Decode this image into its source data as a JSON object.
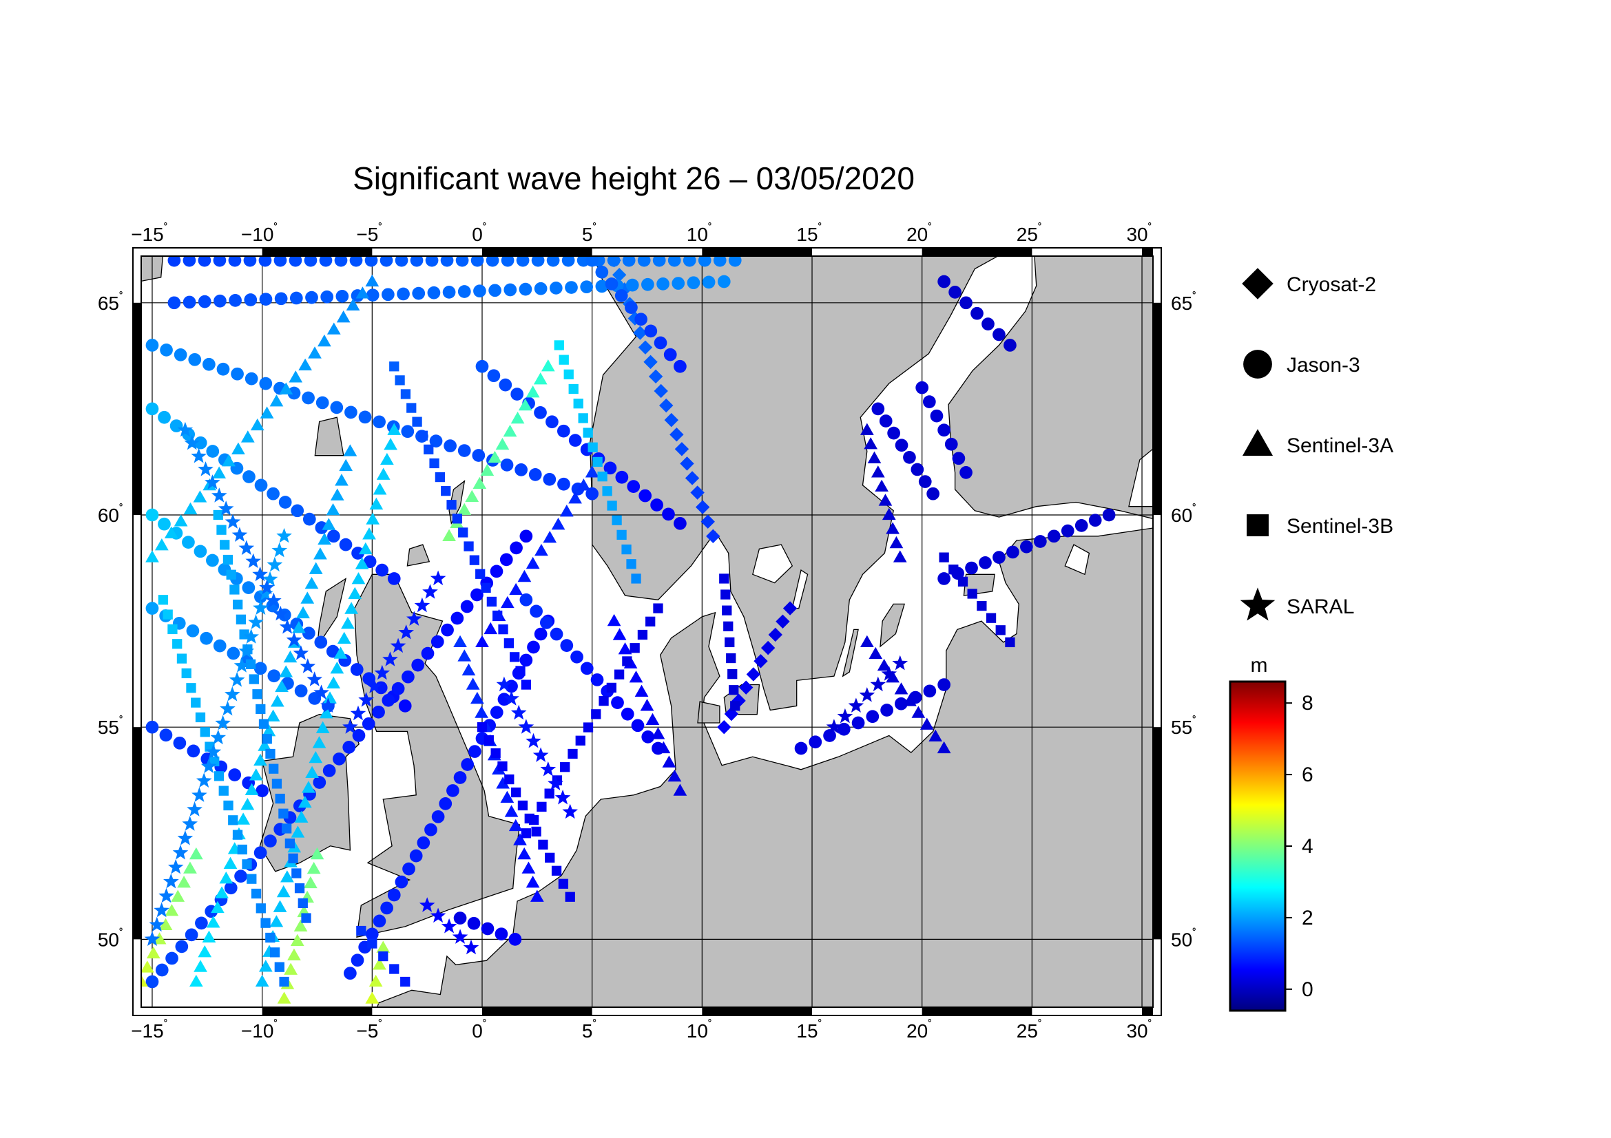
{
  "title": "Significant wave height 26 – 03/05/2020",
  "map": {
    "lon_range": [
      -15.5,
      30.5
    ],
    "lat_range": [
      48.4,
      66.1
    ],
    "lon_ticks": [
      {
        "value": -15,
        "label": "−15"
      },
      {
        "value": -10,
        "label": "−10"
      },
      {
        "value": -5,
        "label": "−5"
      },
      {
        "value": 0,
        "label": "0"
      },
      {
        "value": 5,
        "label": "5"
      },
      {
        "value": 10,
        "label": "10"
      },
      {
        "value": 15,
        "label": "15"
      },
      {
        "value": 20,
        "label": "20"
      },
      {
        "value": 25,
        "label": "25"
      },
      {
        "value": 30,
        "label": "30"
      }
    ],
    "lat_ticks": [
      {
        "value": 50,
        "label": "50"
      },
      {
        "value": 55,
        "label": "55"
      },
      {
        "value": 60,
        "label": "60"
      },
      {
        "value": 65,
        "label": "65"
      }
    ],
    "degree_symbol": "˚",
    "land_color": "#bebebe",
    "sea_color": "#ffffff"
  },
  "legend": {
    "items": [
      {
        "label": "Cryosat-2",
        "marker": "diamond"
      },
      {
        "label": "Jason-3",
        "marker": "circle"
      },
      {
        "label": "Sentinel-3A",
        "marker": "triangle"
      },
      {
        "label": "Sentinel-3B",
        "marker": "square"
      },
      {
        "label": "SARAL",
        "marker": "star"
      }
    ]
  },
  "colorbar": {
    "unit": "m",
    "range": [
      -0.6,
      8.6
    ],
    "ticks": [
      {
        "value": 0,
        "label": "0"
      },
      {
        "value": 2,
        "label": "2"
      },
      {
        "value": 4,
        "label": "4"
      },
      {
        "value": 6,
        "label": "6"
      },
      {
        "value": 8,
        "label": "8"
      }
    ],
    "stops": [
      "#00007f",
      "#0000ff",
      "#007fff",
      "#00ffff",
      "#7fff7f",
      "#ffff00",
      "#ff7f00",
      "#ff0000",
      "#7f0000"
    ]
  },
  "chart_data": {
    "type": "scatter",
    "title": "Significant wave height 26 – 03/05/2020",
    "xlabel": "",
    "ylabel": "",
    "xlim": [
      -15.5,
      30.5
    ],
    "ylim": [
      48.4,
      66.1
    ],
    "value_unit": "m",
    "value_range": [
      -0.6,
      8.6
    ],
    "series": [
      {
        "name": "Cryosat-2",
        "marker": "diamond",
        "tracks": [
          {
            "lon": [
              6.0,
              10.5
            ],
            "lat": [
              66.0,
              59.5
            ],
            "values": [
              1.6,
              1.0
            ]
          },
          {
            "lon": [
              14.0,
              11.0
            ],
            "lat": [
              57.8,
              55.0
            ],
            "values": [
              0.3,
              0.5
            ]
          }
        ]
      },
      {
        "name": "Jason-3",
        "marker": "circle",
        "tracks": [
          {
            "lon": [
              -14.0,
              11.5
            ],
            "lat": [
              66.0,
              66.0
            ],
            "values": [
              1.1,
              1.7
            ]
          },
          {
            "lon": [
              -14.0,
              11.0
            ],
            "lat": [
              65.0,
              65.5
            ],
            "values": [
              1.2,
              1.8
            ]
          },
          {
            "lon": [
              -15.0,
              5.0
            ],
            "lat": [
              64.0,
              60.5
            ],
            "values": [
              1.8,
              1.0
            ]
          },
          {
            "lon": [
              -15.0,
              -4.0
            ],
            "lat": [
              62.5,
              58.5
            ],
            "values": [
              2.2,
              0.8
            ]
          },
          {
            "lon": [
              -15.0,
              -3.5
            ],
            "lat": [
              60.0,
              55.5
            ],
            "values": [
              2.4,
              0.6
            ]
          },
          {
            "lon": [
              -15.0,
              -10.0
            ],
            "lat": [
              55.0,
              53.5
            ],
            "values": [
              1.1,
              0.8
            ]
          },
          {
            "lon": [
              -15.0,
              -7.0
            ],
            "lat": [
              57.8,
              55.5
            ],
            "values": [
              2.0,
              1.2
            ]
          },
          {
            "lon": [
              0.0,
              9.0
            ],
            "lat": [
              63.5,
              59.8
            ],
            "values": [
              1.3,
              0.4
            ]
          },
          {
            "lon": [
              5.0,
              9.0
            ],
            "lat": [
              66.0,
              63.5
            ],
            "values": [
              1.5,
              0.8
            ]
          },
          {
            "lon": [
              -15.0,
              2.0
            ],
            "lat": [
              49.0,
              59.5
            ],
            "values": [
              1.2,
              0.5
            ]
          },
          {
            "lon": [
              -6.0,
              3.0
            ],
            "lat": [
              49.2,
              57.5
            ],
            "values": [
              0.9,
              0.6
            ]
          },
          {
            "lon": [
              2.0,
              8.0
            ],
            "lat": [
              58.0,
              54.5
            ],
            "values": [
              1.0,
              0.4
            ]
          },
          {
            "lon": [
              18.0,
              20.5
            ],
            "lat": [
              62.5,
              60.5
            ],
            "values": [
              0.2,
              0.1
            ]
          },
          {
            "lon": [
              20.0,
              22.0
            ],
            "lat": [
              63.0,
              61.0
            ],
            "values": [
              0.2,
              0.2
            ]
          },
          {
            "lon": [
              21.0,
              24.0
            ],
            "lat": [
              65.5,
              64.0
            ],
            "values": [
              0.1,
              0.1
            ]
          },
          {
            "lon": [
              14.5,
              21.0
            ],
            "lat": [
              54.5,
              56.0
            ],
            "values": [
              0.3,
              0.2
            ]
          },
          {
            "lon": [
              21.0,
              28.5
            ],
            "lat": [
              58.5,
              60.0
            ],
            "values": [
              0.2,
              0.1
            ]
          },
          {
            "lon": [
              -1.0,
              1.5
            ],
            "lat": [
              50.5,
              50.0
            ],
            "values": [
              0.3,
              0.5
            ]
          }
        ]
      },
      {
        "name": "Sentinel-3A",
        "marker": "triangle",
        "tracks": [
          {
            "lon": [
              -15.0,
              -5.0
            ],
            "lat": [
              59.0,
              65.5
            ],
            "values": [
              2.4,
              1.8
            ]
          },
          {
            "lon": [
              -13.0,
              -6.0
            ],
            "lat": [
              49.0,
              61.5
            ],
            "values": [
              2.6,
              2.0
            ]
          },
          {
            "lon": [
              -10.0,
              -4.0
            ],
            "lat": [
              49.0,
              62.0
            ],
            "values": [
              2.3,
              2.4
            ]
          },
          {
            "lon": [
              -1.5,
              3.0
            ],
            "lat": [
              59.5,
              63.5
            ],
            "values": [
              4.0,
              3.2
            ]
          },
          {
            "lon": [
              -15.5,
              -13.0
            ],
            "lat": [
              49.0,
              52.0
            ],
            "values": [
              4.8,
              3.8
            ]
          },
          {
            "lon": [
              -9.0,
              -7.5
            ],
            "lat": [
              48.6,
              52.0
            ],
            "values": [
              4.6,
              3.8
            ]
          },
          {
            "lon": [
              -5.0,
              -4.5
            ],
            "lat": [
              48.6,
              49.8
            ],
            "values": [
              4.8,
              4.4
            ]
          },
          {
            "lon": [
              -1.0,
              2.5
            ],
            "lat": [
              57.0,
              51.0
            ],
            "values": [
              1.0,
              0.6
            ]
          },
          {
            "lon": [
              6.0,
              9.0
            ],
            "lat": [
              57.5,
              53.5
            ],
            "values": [
              0.6,
              0.3
            ]
          },
          {
            "lon": [
              17.5,
              21.0
            ],
            "lat": [
              57.0,
              54.5
            ],
            "values": [
              0.2,
              0.2
            ]
          },
          {
            "lon": [
              17.5,
              19.0
            ],
            "lat": [
              62.0,
              59.0
            ],
            "values": [
              0.1,
              0.2
            ]
          },
          {
            "lon": [
              0.0,
              5.0
            ],
            "lat": [
              57.0,
              61.0
            ],
            "values": [
              0.6,
              1.0
            ]
          }
        ]
      },
      {
        "name": "Sentinel-3B",
        "marker": "square",
        "tracks": [
          {
            "lon": [
              -14.5,
              -9.0
            ],
            "lat": [
              58.0,
              49.0
            ],
            "values": [
              2.4,
              1.6
            ]
          },
          {
            "lon": [
              -12.0,
              -8.0
            ],
            "lat": [
              60.0,
              50.5
            ],
            "values": [
              2.2,
              1.4
            ]
          },
          {
            "lon": [
              -4.0,
              2.0
            ],
            "lat": [
              63.5,
              56.0
            ],
            "values": [
              1.4,
              0.6
            ]
          },
          {
            "lon": [
              2.0,
              8.0
            ],
            "lat": [
              52.5,
              57.8
            ],
            "values": [
              0.5,
              0.3
            ]
          },
          {
            "lon": [
              0.0,
              4.0
            ],
            "lat": [
              55.0,
              51.0
            ],
            "values": [
              0.5,
              0.4
            ]
          },
          {
            "lon": [
              3.5,
              7.0
            ],
            "lat": [
              64.0,
              58.5
            ],
            "values": [
              2.6,
              1.8
            ]
          },
          {
            "lon": [
              11.0,
              11.5
            ],
            "lat": [
              58.5,
              55.5
            ],
            "values": [
              0.3,
              0.2
            ]
          },
          {
            "lon": [
              21.0,
              24.0
            ],
            "lat": [
              59.0,
              57.0
            ],
            "values": [
              0.2,
              0.2
            ]
          },
          {
            "lon": [
              -5.5,
              -3.5
            ],
            "lat": [
              50.2,
              49.0
            ],
            "values": [
              1.0,
              0.8
            ]
          }
        ]
      },
      {
        "name": "SARAL",
        "marker": "star",
        "tracks": [
          {
            "lon": [
              -15.0,
              -9.0
            ],
            "lat": [
              50.0,
              59.5
            ],
            "values": [
              1.6,
              2.0
            ]
          },
          {
            "lon": [
              -13.5,
              -7.0
            ],
            "lat": [
              62.0,
              55.5
            ],
            "values": [
              1.8,
              1.2
            ]
          },
          {
            "lon": [
              1.0,
              4.0
            ],
            "lat": [
              56.0,
              53.0
            ],
            "values": [
              0.8,
              0.6
            ]
          },
          {
            "lon": [
              -6.0,
              -2.0
            ],
            "lat": [
              55.0,
              58.5
            ],
            "values": [
              0.9,
              0.7
            ]
          },
          {
            "lon": [
              16.0,
              19.0
            ],
            "lat": [
              55.0,
              56.5
            ],
            "values": [
              0.2,
              0.2
            ]
          },
          {
            "lon": [
              -2.5,
              -0.5
            ],
            "lat": [
              50.8,
              49.8
            ],
            "values": [
              0.6,
              0.5
            ]
          }
        ]
      }
    ]
  }
}
